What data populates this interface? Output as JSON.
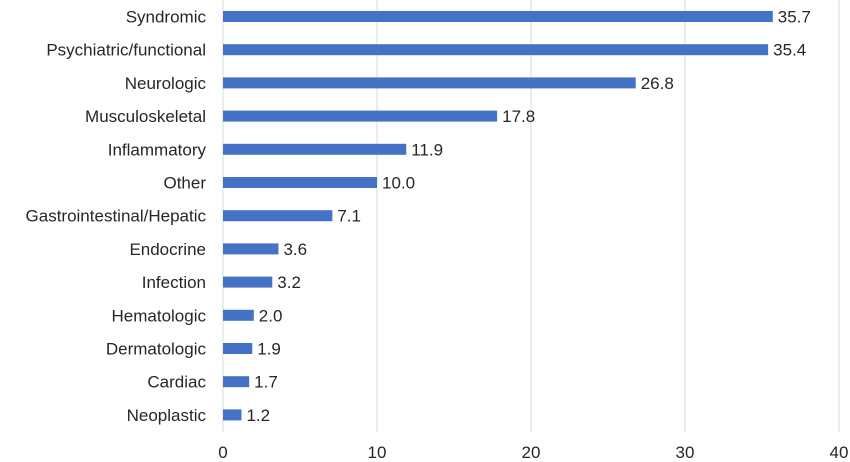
{
  "chart_data": {
    "type": "bar",
    "orientation": "horizontal",
    "categories": [
      "Syndromic",
      "Psychiatric/functional",
      "Neurologic",
      "Musculoskeletal",
      "Inflammatory",
      "Other",
      "Gastrointestinal/Hepatic",
      "Endocrine",
      "Infection",
      "Hematologic",
      "Dermatologic",
      "Cardiac",
      "Neoplastic"
    ],
    "values": [
      35.7,
      35.4,
      26.8,
      17.8,
      11.9,
      10.0,
      7.1,
      3.6,
      3.2,
      2.0,
      1.9,
      1.7,
      1.2
    ],
    "value_labels": [
      "35.7",
      "35.4",
      "26.8",
      "17.8",
      "11.9",
      "10.0",
      "7.1",
      "3.6",
      "3.2",
      "2.0",
      "1.9",
      "1.7",
      "1.2"
    ],
    "xlim": [
      0,
      40
    ],
    "x_ticks": [
      0,
      10,
      20,
      30,
      40
    ],
    "x_tick_labels": [
      "0",
      "10",
      "20",
      "30",
      "40"
    ],
    "title": "",
    "xlabel": "",
    "ylabel": "",
    "grid": true,
    "legend": "none",
    "bar_color": "#4472c4"
  }
}
